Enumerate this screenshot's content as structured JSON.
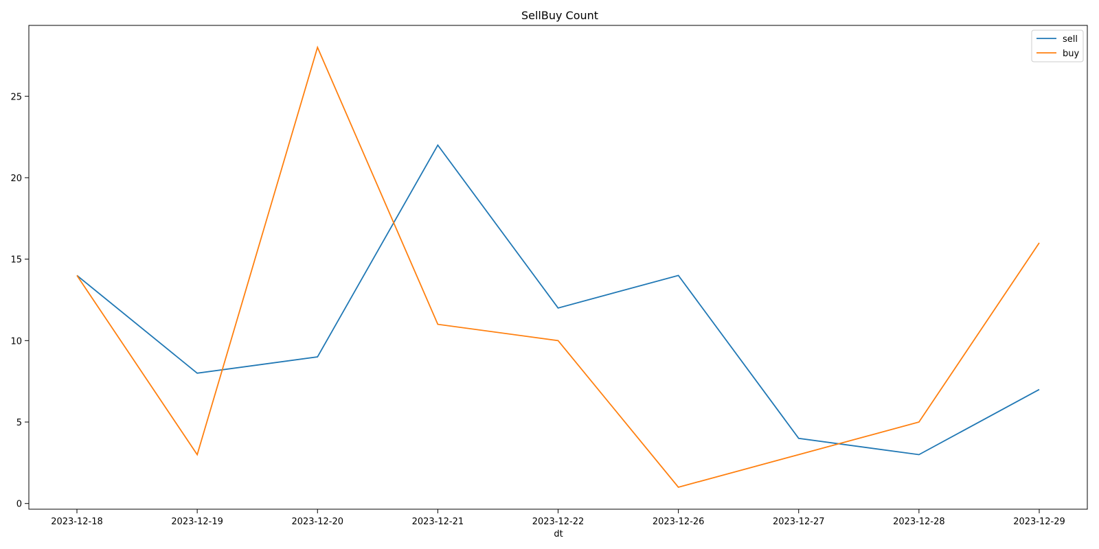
{
  "chart_data": {
    "type": "line",
    "title": "SellBuy Count",
    "xlabel": "dt",
    "ylabel": "",
    "categories": [
      "2023-12-18",
      "2023-12-19",
      "2023-12-20",
      "2023-12-21",
      "2023-12-22",
      "2023-12-26",
      "2023-12-27",
      "2023-12-28",
      "2023-12-29"
    ],
    "yticks": [
      0,
      5,
      10,
      15,
      20,
      25
    ],
    "ylim": [
      -0.35,
      29.35
    ],
    "grid": false,
    "legend_position": "top-right",
    "series": [
      {
        "name": "sell",
        "color": "#1f77b4",
        "values": [
          14,
          8,
          9,
          22,
          12,
          14,
          4,
          3,
          7
        ]
      },
      {
        "name": "buy",
        "color": "#ff7f0e",
        "values": [
          14,
          3,
          28,
          11,
          10,
          1,
          3,
          5,
          16
        ]
      }
    ]
  }
}
